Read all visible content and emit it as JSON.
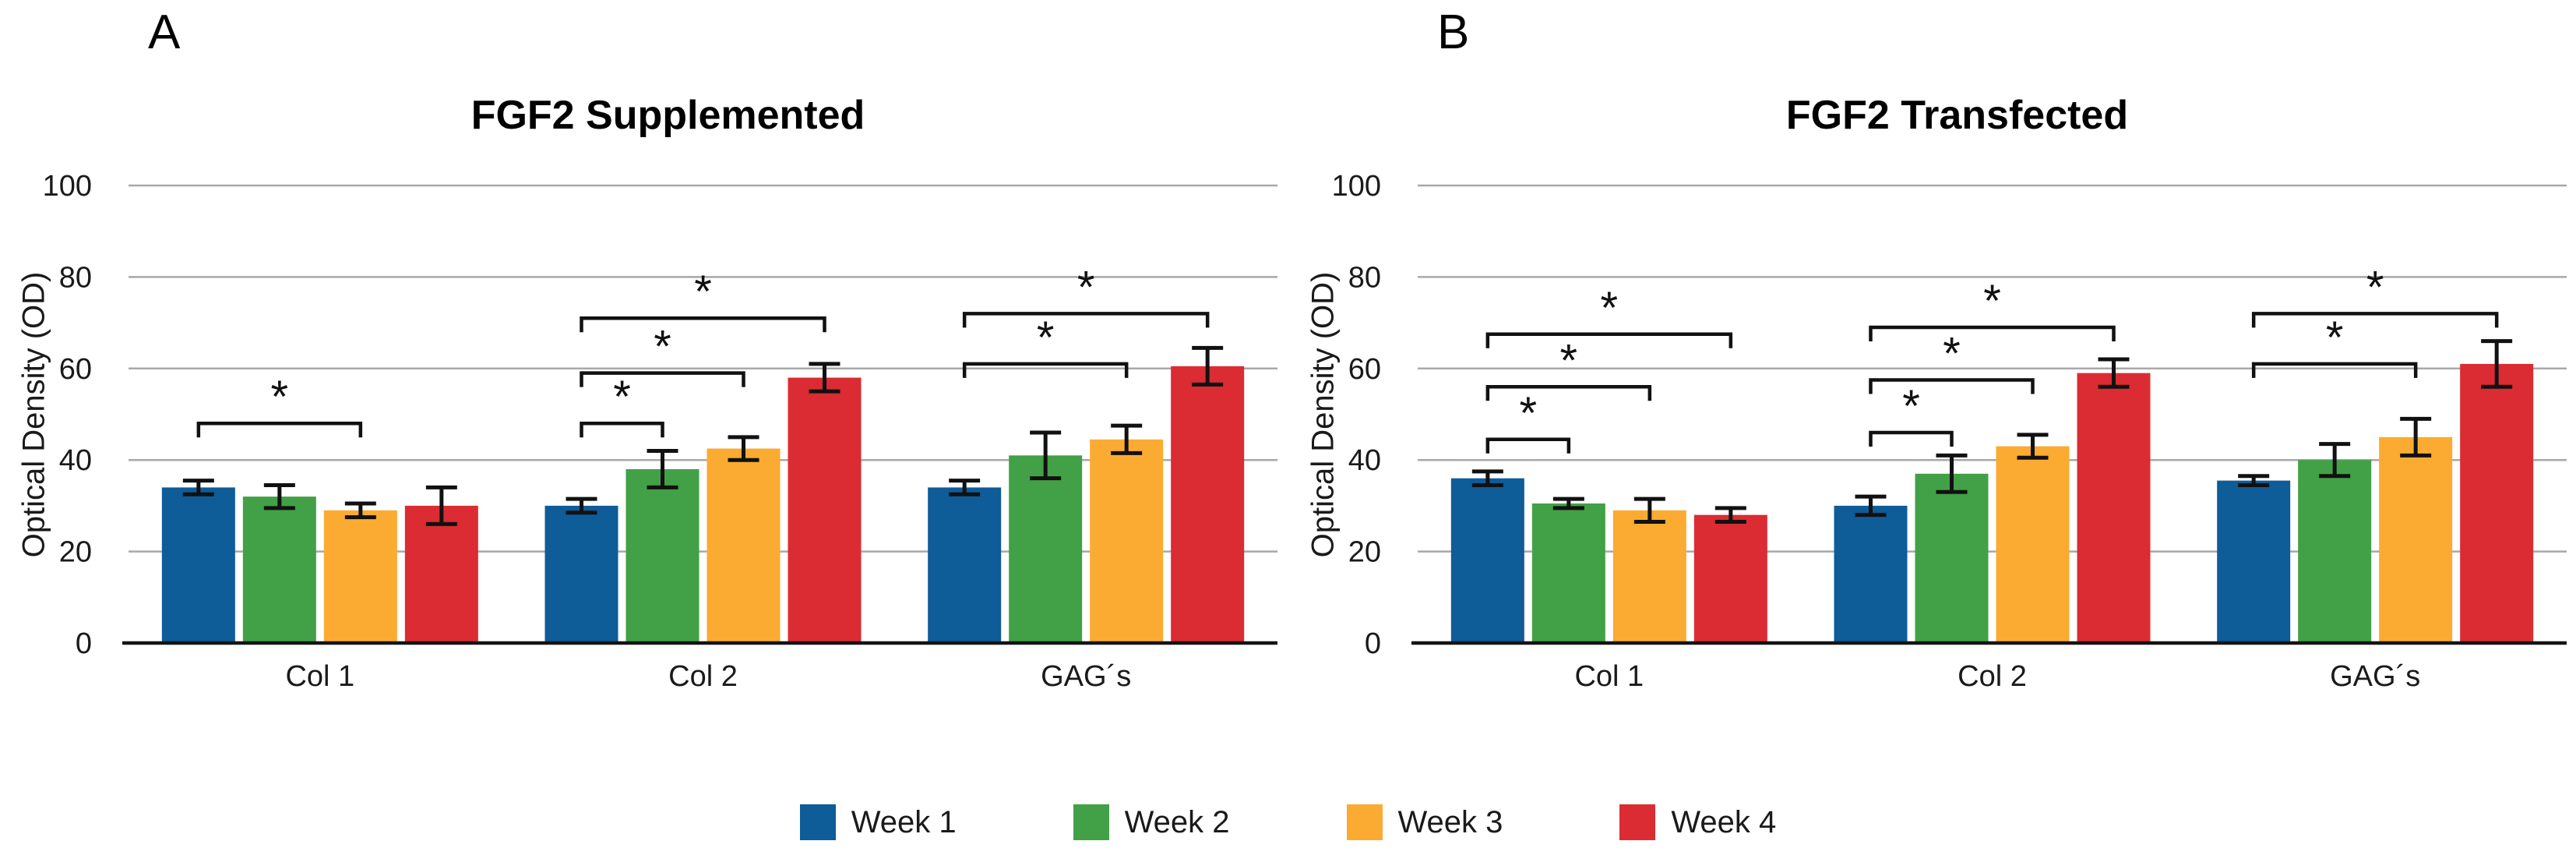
{
  "chart_data": [
    {
      "type": "bar",
      "panel_label": "A",
      "title": "FGF2 Supplemented",
      "ylabel": "Optical Density (OD)",
      "categories": [
        "Col 1",
        "Col 2",
        "GAG´s"
      ],
      "yticks": [
        0,
        20,
        40,
        60,
        80,
        100
      ],
      "ylim": [
        0,
        100
      ],
      "grid": "horizontal",
      "series": [
        {
          "name": "Week 1",
          "values": [
            34,
            30,
            34
          ],
          "errors": [
            1.5,
            1.5,
            1.5
          ]
        },
        {
          "name": "Week 2",
          "values": [
            32,
            38,
            41
          ],
          "errors": [
            2.5,
            4,
            5
          ]
        },
        {
          "name": "Week 3",
          "values": [
            29,
            42.5,
            44.5
          ],
          "errors": [
            1.5,
            2.5,
            3
          ]
        },
        {
          "name": "Week 4",
          "values": [
            30,
            58,
            60.5
          ],
          "errors": [
            4,
            3,
            4
          ]
        }
      ],
      "significance_brackets": [
        {
          "category": 0,
          "from_series": 0,
          "to_series": 2,
          "height": 48,
          "label": "*"
        },
        {
          "category": 1,
          "from_series": 0,
          "to_series": 1,
          "height": 48,
          "label": "*"
        },
        {
          "category": 1,
          "from_series": 0,
          "to_series": 2,
          "height": 59,
          "label": "*"
        },
        {
          "category": 1,
          "from_series": 0,
          "to_series": 3,
          "height": 71,
          "label": "*"
        },
        {
          "category": 2,
          "from_series": 0,
          "to_series": 2,
          "height": 61,
          "label": "*"
        },
        {
          "category": 2,
          "from_series": 0,
          "to_series": 3,
          "height": 72,
          "label": "*"
        }
      ]
    },
    {
      "type": "bar",
      "panel_label": "B",
      "title": "FGF2 Transfected",
      "ylabel": "Optical Density (OD)",
      "categories": [
        "Col 1",
        "Col 2",
        "GAG´s"
      ],
      "yticks": [
        0,
        20,
        40,
        60,
        80,
        100
      ],
      "ylim": [
        0,
        100
      ],
      "grid": "horizontal",
      "series": [
        {
          "name": "Week 1",
          "values": [
            36,
            30,
            35.5
          ],
          "errors": [
            1.5,
            2,
            1
          ]
        },
        {
          "name": "Week 2",
          "values": [
            30.5,
            37,
            40
          ],
          "errors": [
            1,
            4,
            3.5
          ]
        },
        {
          "name": "Week 3",
          "values": [
            29,
            43,
            45
          ],
          "errors": [
            2.5,
            2.5,
            4
          ]
        },
        {
          "name": "Week 4",
          "values": [
            28,
            59,
            61
          ],
          "errors": [
            1.5,
            3,
            5
          ]
        }
      ],
      "significance_brackets": [
        {
          "category": 0,
          "from_series": 0,
          "to_series": 1,
          "height": 44.5,
          "label": "*"
        },
        {
          "category": 0,
          "from_series": 0,
          "to_series": 2,
          "height": 56,
          "label": "*"
        },
        {
          "category": 0,
          "from_series": 0,
          "to_series": 3,
          "height": 67.5,
          "label": "*"
        },
        {
          "category": 1,
          "from_series": 0,
          "to_series": 1,
          "height": 46,
          "label": "*"
        },
        {
          "category": 1,
          "from_series": 0,
          "to_series": 2,
          "height": 57.5,
          "label": "*"
        },
        {
          "category": 1,
          "from_series": 0,
          "to_series": 3,
          "height": 69,
          "label": "*"
        },
        {
          "category": 2,
          "from_series": 0,
          "to_series": 2,
          "height": 61,
          "label": "*"
        },
        {
          "category": 2,
          "from_series": 0,
          "to_series": 3,
          "height": 72,
          "label": "*"
        }
      ]
    }
  ],
  "legend": {
    "items": [
      {
        "label": "Week 1",
        "color": "#0e5c98"
      },
      {
        "label": "Week 2",
        "color": "#42a047"
      },
      {
        "label": "Week 3",
        "color": "#fbab31"
      },
      {
        "label": "Week 4",
        "color": "#da2c32"
      }
    ]
  },
  "style_colors": {
    "gridline": "#a8a8a8",
    "axis": "#141414",
    "text": "#1a1a1a",
    "error_bar": "#111111",
    "bracket": "#111111"
  }
}
